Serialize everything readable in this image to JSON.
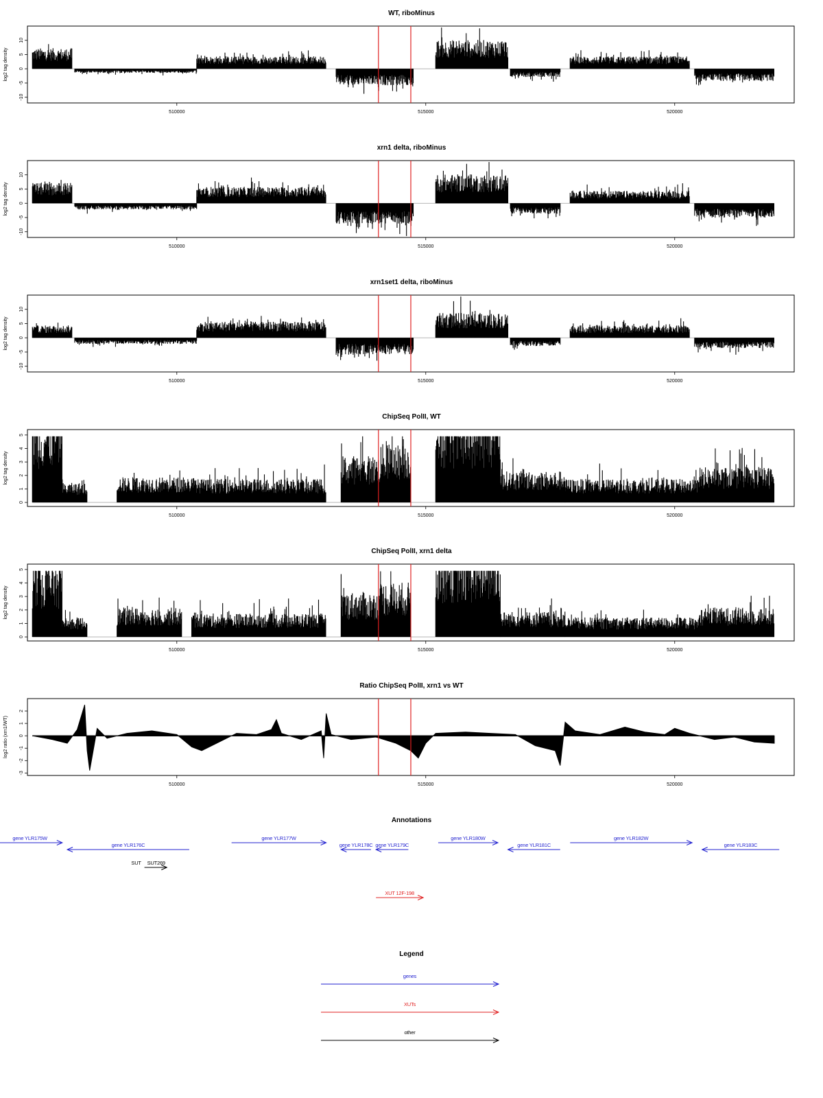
{
  "chart_data": [
    {
      "type": "bar",
      "title": "WT, riboMinus",
      "ylabel": "log2 tag density",
      "ylim": [
        -12,
        15
      ],
      "yticks": [
        -10,
        -5,
        0,
        5,
        10
      ],
      "xlim": [
        507000,
        522400
      ],
      "xticks": [
        510000,
        515000,
        520000
      ],
      "red_lines": [
        514050,
        514700
      ],
      "segments": [
        {
          "start": 507100,
          "end": 507900,
          "level": 5
        },
        {
          "start": 507950,
          "end": 510400,
          "level": -1
        },
        {
          "start": 510400,
          "end": 513000,
          "level": 3
        },
        {
          "start": 513200,
          "end": 514750,
          "level": -4
        },
        {
          "start": 515200,
          "end": 516650,
          "level": 7
        },
        {
          "start": 516700,
          "end": 517700,
          "level": -2
        },
        {
          "start": 517900,
          "end": 520300,
          "level": 3
        },
        {
          "start": 520400,
          "end": 522000,
          "level": -3
        }
      ]
    },
    {
      "type": "bar",
      "title": "xrn1 delta, riboMinus",
      "ylabel": "log2 tag density",
      "ylim": [
        -12,
        15
      ],
      "yticks": [
        -10,
        -5,
        0,
        5,
        10
      ],
      "xlim": [
        507000,
        522400
      ],
      "xticks": [
        510000,
        515000,
        520000
      ],
      "red_lines": [
        514050,
        514700
      ],
      "segments": [
        {
          "start": 507100,
          "end": 507900,
          "level": 5
        },
        {
          "start": 507950,
          "end": 510400,
          "level": -1.5
        },
        {
          "start": 510400,
          "end": 513000,
          "level": 4
        },
        {
          "start": 513200,
          "end": 514750,
          "level": -5
        },
        {
          "start": 515200,
          "end": 516650,
          "level": 7
        },
        {
          "start": 516700,
          "end": 517700,
          "level": -2.5
        },
        {
          "start": 517900,
          "end": 520300,
          "level": 3
        },
        {
          "start": 520400,
          "end": 522000,
          "level": -3.5
        }
      ]
    },
    {
      "type": "bar",
      "title": "xrn1set1 delta, riboMinus",
      "ylabel": "log2 tag density",
      "ylim": [
        -12,
        15
      ],
      "yticks": [
        -10,
        -5,
        0,
        5,
        10
      ],
      "xlim": [
        507000,
        522400
      ],
      "xticks": [
        510000,
        515000,
        520000
      ],
      "red_lines": [
        514050,
        514700
      ],
      "segments": [
        {
          "start": 507100,
          "end": 507900,
          "level": 3
        },
        {
          "start": 507950,
          "end": 510400,
          "level": -1.5
        },
        {
          "start": 510400,
          "end": 513000,
          "level": 4
        },
        {
          "start": 513200,
          "end": 514750,
          "level": -4
        },
        {
          "start": 515200,
          "end": 516650,
          "level": 6
        },
        {
          "start": 516700,
          "end": 517700,
          "level": -2
        },
        {
          "start": 517900,
          "end": 520300,
          "level": 3
        },
        {
          "start": 520400,
          "end": 522000,
          "level": -2.5
        }
      ]
    },
    {
      "type": "bar",
      "title": "ChipSeq PolII, WT",
      "ylabel": "log2 tag density",
      "ylim": [
        -0.3,
        5.4
      ],
      "yticks": [
        0,
        1,
        2,
        3,
        4,
        5
      ],
      "xlim": [
        507000,
        522400
      ],
      "xticks": [
        510000,
        515000,
        520000
      ],
      "red_lines": [
        514050,
        514700
      ],
      "segments": [
        {
          "start": 507100,
          "end": 507700,
          "level": 4.5
        },
        {
          "start": 507700,
          "end": 508200,
          "level": 1
        },
        {
          "start": 508800,
          "end": 510400,
          "level": 1.3
        },
        {
          "start": 510400,
          "end": 513000,
          "level": 1.2
        },
        {
          "start": 513300,
          "end": 514100,
          "level": 2.4
        },
        {
          "start": 514100,
          "end": 514700,
          "level": 3
        },
        {
          "start": 515200,
          "end": 516500,
          "level": 4.5
        },
        {
          "start": 516500,
          "end": 517800,
          "level": 1.6
        },
        {
          "start": 517800,
          "end": 520500,
          "level": 1.2
        },
        {
          "start": 520500,
          "end": 522000,
          "level": 1.8
        }
      ]
    },
    {
      "type": "bar",
      "title": "ChipSeq PolII, xrn1 delta",
      "ylabel": "log2 tag density",
      "ylim": [
        -0.3,
        5.4
      ],
      "yticks": [
        0,
        1,
        2,
        3,
        4,
        5
      ],
      "xlim": [
        507000,
        522400
      ],
      "xticks": [
        510000,
        515000,
        520000
      ],
      "red_lines": [
        514050,
        514700
      ],
      "segments": [
        {
          "start": 507100,
          "end": 507700,
          "level": 3.8
        },
        {
          "start": 507700,
          "end": 508200,
          "level": 1
        },
        {
          "start": 508800,
          "end": 510100,
          "level": 1.5
        },
        {
          "start": 510300,
          "end": 513000,
          "level": 1.2
        },
        {
          "start": 513300,
          "end": 514100,
          "level": 2.3
        },
        {
          "start": 514100,
          "end": 514700,
          "level": 2.8
        },
        {
          "start": 515200,
          "end": 516500,
          "level": 4.5
        },
        {
          "start": 516500,
          "end": 517800,
          "level": 1.3
        },
        {
          "start": 517800,
          "end": 520500,
          "level": 1
        },
        {
          "start": 520500,
          "end": 522000,
          "level": 1.5
        }
      ]
    },
    {
      "type": "area",
      "title": "Ratio ChipSeq PolII, xrn1 vs WT",
      "ylabel": "log2 ratio (xrn1/WT)",
      "ylim": [
        -3.2,
        3
      ],
      "yticks": [
        -3,
        -2,
        -1,
        0,
        1,
        2
      ],
      "xlim": [
        507000,
        522400
      ],
      "xticks": [
        510000,
        515000,
        520000
      ],
      "red_lines": [
        514050,
        514700
      ],
      "points": [
        [
          507100,
          0
        ],
        [
          507500,
          -0.3
        ],
        [
          507800,
          -0.6
        ],
        [
          508000,
          0.5
        ],
        [
          508150,
          2.5
        ],
        [
          508200,
          -1.2
        ],
        [
          508250,
          -2.8
        ],
        [
          508400,
          0.6
        ],
        [
          508600,
          -0.2
        ],
        [
          509000,
          0.2
        ],
        [
          509500,
          0.4
        ],
        [
          510000,
          0.1
        ],
        [
          510300,
          -0.9
        ],
        [
          510500,
          -1.2
        ],
        [
          510800,
          -0.6
        ],
        [
          511200,
          0.2
        ],
        [
          511600,
          0.1
        ],
        [
          511900,
          0.5
        ],
        [
          512000,
          1.3
        ],
        [
          512100,
          0.2
        ],
        [
          512500,
          -0.3
        ],
        [
          512900,
          0.4
        ],
        [
          512950,
          -1.8
        ],
        [
          513000,
          1.8
        ],
        [
          513100,
          0.1
        ],
        [
          513500,
          -0.3
        ],
        [
          514000,
          -0.1
        ],
        [
          514400,
          -0.6
        ],
        [
          514700,
          -1.2
        ],
        [
          514850,
          -1.8
        ],
        [
          515000,
          -0.6
        ],
        [
          515200,
          0.2
        ],
        [
          515800,
          0.3
        ],
        [
          516300,
          0.2
        ],
        [
          516800,
          0.1
        ],
        [
          517200,
          -0.8
        ],
        [
          517600,
          -1.2
        ],
        [
          517700,
          -2.4
        ],
        [
          517800,
          1.1
        ],
        [
          518000,
          0.4
        ],
        [
          518500,
          0.1
        ],
        [
          519000,
          0.7
        ],
        [
          519400,
          0.3
        ],
        [
          519800,
          0.1
        ],
        [
          520000,
          0.6
        ],
        [
          520300,
          0.2
        ],
        [
          520800,
          -0.3
        ],
        [
          521200,
          -0.1
        ],
        [
          521600,
          -0.5
        ],
        [
          522000,
          -0.6
        ]
      ]
    }
  ],
  "annotations": {
    "title": "Annotations",
    "xlim": [
      507000,
      522400
    ],
    "features": [
      {
        "label": "gene YLR175W",
        "start": 506400,
        "end": 507700,
        "row": 0,
        "strand": "+",
        "kind": "gene"
      },
      {
        "label": "gene YLR176C",
        "start": 507800,
        "end": 510250,
        "row": 1,
        "strand": "-",
        "kind": "gene"
      },
      {
        "label": "gene YLR177W",
        "start": 511100,
        "end": 513000,
        "row": 0,
        "strand": "+",
        "kind": "gene"
      },
      {
        "label": "gene YLR178C",
        "start": 513300,
        "end": 513900,
        "row": 1,
        "strand": "-",
        "kind": "gene"
      },
      {
        "label": "gene YLR179C",
        "start": 514000,
        "end": 514650,
        "row": 1,
        "strand": "-",
        "kind": "gene"
      },
      {
        "label": "gene YLR180W",
        "start": 515250,
        "end": 516450,
        "row": 0,
        "strand": "+",
        "kind": "gene"
      },
      {
        "label": "gene YLR181C",
        "start": 516650,
        "end": 517700,
        "row": 1,
        "strand": "-",
        "kind": "gene"
      },
      {
        "label": "gene YLR182W",
        "start": 517900,
        "end": 520350,
        "row": 0,
        "strand": "+",
        "kind": "gene"
      },
      {
        "label": "gene YLR183C",
        "start": 520550,
        "end": 522100,
        "row": 1,
        "strand": "-",
        "kind": "gene"
      },
      {
        "label": "SUT",
        "start": 509350,
        "end": 509350,
        "row": 2,
        "strand": "",
        "kind": "label"
      },
      {
        "label": "SUT269",
        "start": 509350,
        "end": 509800,
        "row": 2,
        "strand": "+",
        "kind": "other"
      },
      {
        "label": "XUT 12F-198",
        "start": 514000,
        "end": 514950,
        "row": 3,
        "strand": "+",
        "kind": "xut"
      }
    ]
  },
  "legend": {
    "title": "Legend",
    "items": [
      {
        "label": "genes",
        "kind": "gene"
      },
      {
        "label": "XUTs",
        "kind": "xut"
      },
      {
        "label": "other",
        "kind": "other"
      }
    ]
  },
  "colors": {
    "gene": "#1f1fcf",
    "xut": "#e02020",
    "other": "#000000",
    "redline": "#e02020"
  }
}
